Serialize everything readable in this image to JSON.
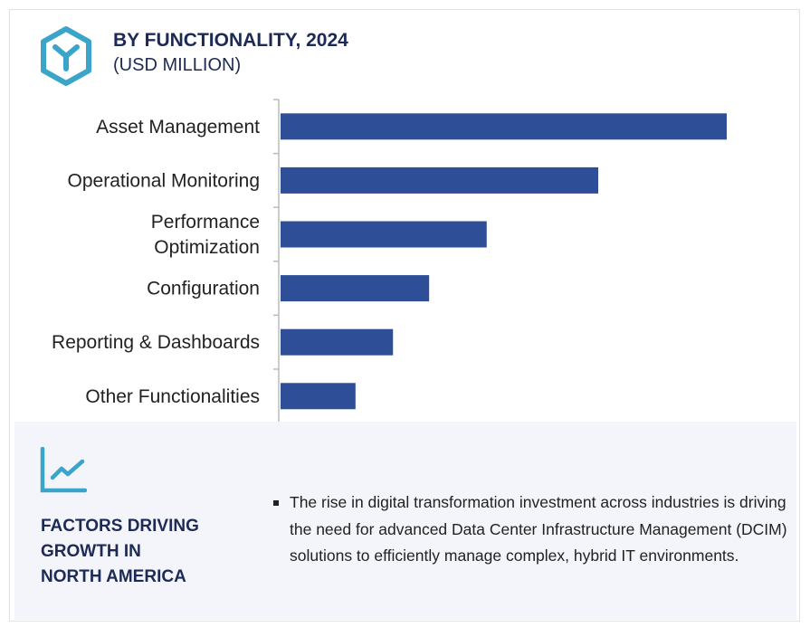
{
  "header": {
    "title": "BY FUNCTIONALITY, 2024",
    "subtitle": "(USD MILLION)",
    "icon": "hexagon-y-icon"
  },
  "chart_data": {
    "type": "bar",
    "orientation": "horizontal",
    "title": "BY FUNCTIONALITY, 2024",
    "subtitle": "(USD MILLION)",
    "categories": [
      "Asset Management",
      "Operational Monitoring",
      "Performance Optimization",
      "Configuration",
      "Reporting & Dashboards",
      "Other Functionalities"
    ],
    "values": [
      100,
      71.2,
      46.2,
      33.3,
      25.2,
      16.8
    ],
    "value_scale": "relative (no axis values printed)",
    "bar_color": "#2e4f98",
    "grid": false,
    "legend": "none"
  },
  "factors": {
    "icon": "line-chart-icon",
    "title_lines": [
      "FACTORS DRIVING",
      "GROWTH IN",
      "NORTH AMERICA"
    ],
    "bullet": "The rise in digital transformation investment across industries is driving the need for advanced Data Center Infrastructure Management (DCIM) solutions to efficiently manage complex, hybrid IT environments."
  },
  "colors": {
    "accent": "#3aa5c9",
    "heading": "#1c2a55",
    "bar": "#2e4f98",
    "panel": "#f4f5fa"
  }
}
